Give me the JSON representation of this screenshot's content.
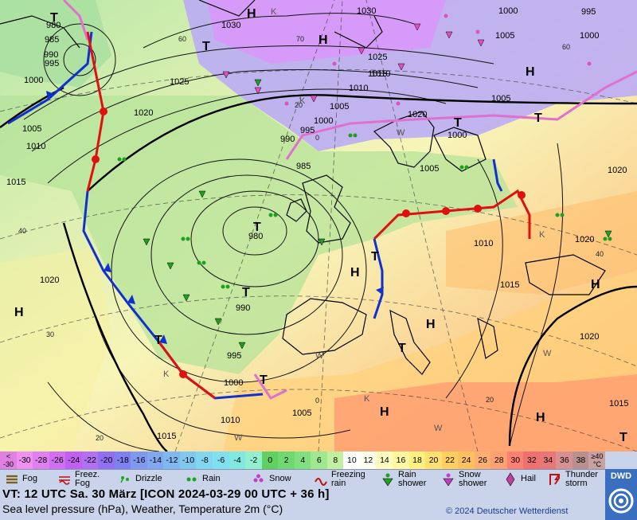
{
  "map": {
    "pressure_labels": [
      {
        "text": "980"
      },
      {
        "text": "985"
      },
      {
        "text": "990"
      },
      {
        "text": "995"
      },
      {
        "text": "1000"
      },
      {
        "text": "1005"
      },
      {
        "text": "1010"
      },
      {
        "text": "1015"
      },
      {
        "text": "1020"
      },
      {
        "text": "1025"
      },
      {
        "text": "1030"
      },
      {
        "text": "1000"
      },
      {
        "text": "995"
      },
      {
        "text": "1000"
      },
      {
        "text": "1005"
      },
      {
        "text": "1010"
      },
      {
        "text": "1015"
      },
      {
        "text": "1020"
      },
      {
        "text": "1025"
      },
      {
        "text": "1030"
      },
      {
        "text": "1010"
      },
      {
        "text": "1005"
      },
      {
        "text": "1000"
      },
      {
        "text": "995"
      },
      {
        "text": "990"
      },
      {
        "text": "985"
      },
      {
        "text": "980"
      },
      {
        "text": "990"
      },
      {
        "text": "995"
      },
      {
        "text": "1000"
      },
      {
        "text": "1005"
      },
      {
        "text": "1010"
      },
      {
        "text": "1015"
      },
      {
        "text": "1020"
      },
      {
        "text": "1005"
      },
      {
        "text": "1000"
      },
      {
        "text": "1005"
      },
      {
        "text": "1010"
      },
      {
        "text": "1015"
      },
      {
        "text": "1020"
      },
      {
        "text": "1020"
      },
      {
        "text": "1020"
      },
      {
        "text": "1015"
      }
    ],
    "high_label": "H",
    "low_label": "T",
    "grid_labels": [
      "60",
      "40",
      "30",
      "20",
      "0",
      "60",
      "40",
      "20",
      "20",
      "0",
      "70"
    ],
    "wind_labels": [
      "W",
      "W",
      "W",
      "W",
      "W",
      "K",
      "K",
      "K",
      "K",
      "K"
    ]
  },
  "scale": {
    "cells": [
      {
        "text": "<\n-30",
        "bg": "#e080e0"
      },
      {
        "text": "-30",
        "bg": "#f090f0"
      },
      {
        "text": "-28",
        "bg": "#e080f0"
      },
      {
        "text": "-26",
        "bg": "#d070f0"
      },
      {
        "text": "-24",
        "bg": "#c060f0"
      },
      {
        "text": "-22",
        "bg": "#b070f0"
      },
      {
        "text": "-20",
        "bg": "#9070f0"
      },
      {
        "text": "-18",
        "bg": "#8080f0"
      },
      {
        "text": "-16",
        "bg": "#8098f0"
      },
      {
        "text": "-14",
        "bg": "#80a8f0"
      },
      {
        "text": "-12",
        "bg": "#80b8f0"
      },
      {
        "text": "-10",
        "bg": "#80c8f0"
      },
      {
        "text": "-8",
        "bg": "#80d8f0"
      },
      {
        "text": "-6",
        "bg": "#80e0f0"
      },
      {
        "text": "-4",
        "bg": "#80e8e0"
      },
      {
        "text": "-2",
        "bg": "#90f0d0"
      },
      {
        "text": "0",
        "bg": "#60d060"
      },
      {
        "text": "2",
        "bg": "#70d870"
      },
      {
        "text": "4",
        "bg": "#80e080"
      },
      {
        "text": "6",
        "bg": "#a0e890"
      },
      {
        "text": "8",
        "bg": "#c0f0a0"
      },
      {
        "text": "10",
        "bg": "#ffffff"
      },
      {
        "text": "12",
        "bg": "#fffff0"
      },
      {
        "text": "14",
        "bg": "#fffcc0"
      },
      {
        "text": "16",
        "bg": "#fff8a0"
      },
      {
        "text": "18",
        "bg": "#fff080"
      },
      {
        "text": "20",
        "bg": "#ffe070"
      },
      {
        "text": "22",
        "bg": "#ffd060"
      },
      {
        "text": "24",
        "bg": "#ffc060"
      },
      {
        "text": "26",
        "bg": "#ffb070"
      },
      {
        "text": "28",
        "bg": "#ffa070"
      },
      {
        "text": "30",
        "bg": "#ff8070"
      },
      {
        "text": "32",
        "bg": "#f07070"
      },
      {
        "text": "34",
        "bg": "#e87878"
      },
      {
        "text": "36",
        "bg": "#d89090"
      },
      {
        "text": "38",
        "bg": "#b89090"
      },
      {
        "text": "≥40\n°C",
        "bg": "#c8a0a0"
      }
    ]
  },
  "legend": {
    "items": [
      {
        "label": "Fog",
        "icon": "fog-icon"
      },
      {
        "label": "Freez.\nFog",
        "icon": "freezing-fog-icon"
      },
      {
        "label": "Drizzle",
        "icon": "drizzle-icon"
      },
      {
        "label": "Rain",
        "icon": "rain-icon"
      },
      {
        "label": "Snow",
        "icon": "snow-icon"
      },
      {
        "label": "Freezing\nrain",
        "icon": "freezing-rain-icon"
      },
      {
        "label": "Rain\nshower",
        "icon": "rain-shower-icon"
      },
      {
        "label": "Snow\nshower",
        "icon": "snow-shower-icon"
      },
      {
        "label": "Hail",
        "icon": "hail-icon"
      },
      {
        "label": "Thunder\nstorm",
        "icon": "thunderstorm-icon"
      }
    ]
  },
  "footer": {
    "vt": "VT: 12 UTC Sa.  30 März [ICON 2024-03-29  00 UTC + 36 h]",
    "subtitle": "Sea level pressure (hPa), Weather, Temperature 2m (°C)",
    "copyright": "© 2024 Deutscher Wetterdienst",
    "logo": "DWD"
  },
  "colors": {
    "cold_front": "#1030d0",
    "warm_front": "#e01010",
    "occlusion": "#e070d0"
  }
}
